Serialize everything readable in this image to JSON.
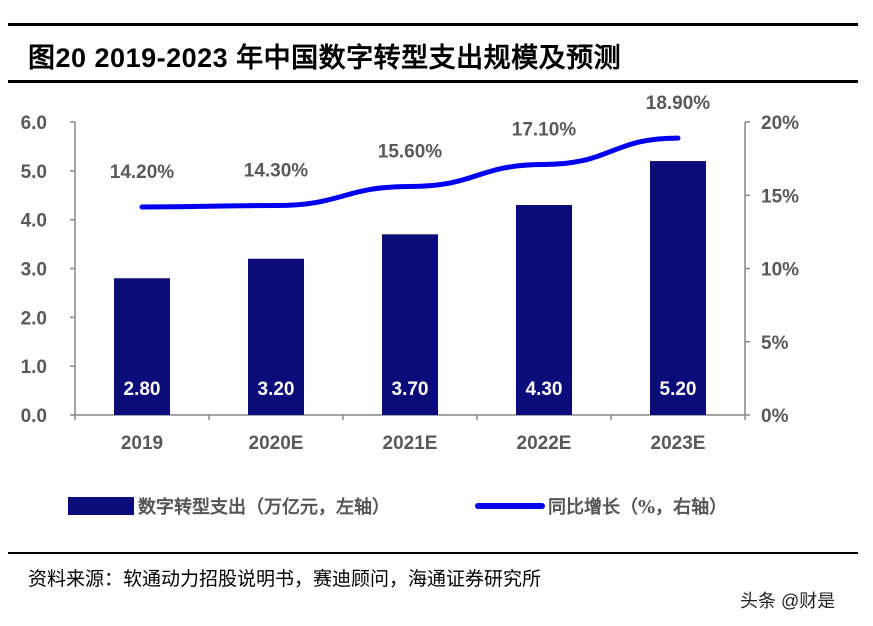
{
  "title": "图20 2019-2023  年中国数字转型支出规模及预测",
  "source": "资料来源：软通动力招股说明书，赛迪顾问，海通证券研究所",
  "watermark": "头条 @财是",
  "chart_data": {
    "type": "bar+line",
    "categories": [
      "2019",
      "2020E",
      "2021E",
      "2022E",
      "2023E"
    ],
    "series": [
      {
        "name": "数字转型支出（万亿元，左轴）",
        "type": "bar",
        "axis": "left",
        "values": [
          2.8,
          3.2,
          3.7,
          4.3,
          5.2
        ],
        "labels": [
          "2.80",
          "3.20",
          "3.70",
          "4.30",
          "5.20"
        ],
        "color": "#0b0b7a"
      },
      {
        "name": "同比增长（%，右轴）",
        "type": "line",
        "axis": "right",
        "values": [
          14.2,
          14.3,
          15.6,
          17.1,
          18.9
        ],
        "labels": [
          "14.20%",
          "14.30%",
          "15.60%",
          "17.10%",
          "18.90%"
        ],
        "color": "#0000f0"
      }
    ],
    "left_axis": {
      "range": [
        0,
        6
      ],
      "ticks": [
        "0.0",
        "1.0",
        "2.0",
        "3.0",
        "4.0",
        "5.0",
        "6.0"
      ]
    },
    "right_axis": {
      "range": [
        0,
        20
      ],
      "ticks": [
        "0%",
        "5%",
        "10%",
        "15%",
        "20%"
      ]
    },
    "grid": false,
    "legend": "bottom"
  }
}
